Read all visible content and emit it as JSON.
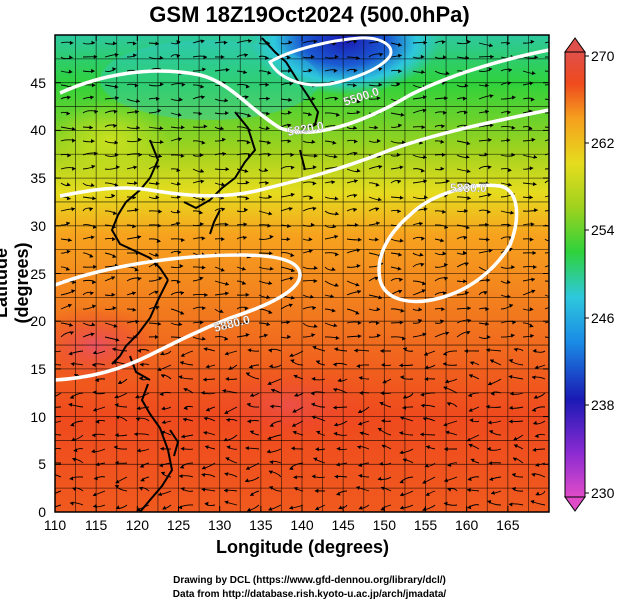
{
  "title": "GSM 18Z19Oct2024 (500.0hPa)",
  "axes": {
    "xlabel": "Longitude (degrees)",
    "ylabel": "Latitude  (degrees)",
    "xticks": [
      "110",
      "115",
      "120",
      "125",
      "130",
      "135",
      "140",
      "145",
      "150",
      "155",
      "160",
      "165"
    ],
    "yticks": [
      "0",
      "5",
      "10",
      "15",
      "20",
      "25",
      "30",
      "35",
      "40",
      "45"
    ]
  },
  "colorbar": {
    "ticks": [
      "270",
      "262",
      "254",
      "246",
      "238",
      "230"
    ],
    "colors": [
      "#e04cc8",
      "#1a1ab4",
      "#1a8ce6",
      "#2ec8dc",
      "#2ed23c",
      "#9ed21e",
      "#e6dc1e",
      "#f7a21e",
      "#f27a1e",
      "#ef3d1e",
      "#e0504a"
    ]
  },
  "contour_labels": {
    "c5880": "5880.0",
    "c5820": "5820.0",
    "c5500": "5500.0",
    "c5880_east": "5880.0"
  },
  "credits": {
    "line1": "Drawing by DCL (https://www.gfd-dennou.org/library/dcl/)",
    "line2": "Data from http://database.rish.kyoto-u.ac.jp/arch/jmadata/"
  },
  "chart_data": {
    "type": "heatmap",
    "title": "GSM 18Z19Oct2024 (500.0hPa)",
    "xlabel": "Longitude (degrees)",
    "ylabel": "Latitude  (degrees)",
    "xlim": [
      110,
      170
    ],
    "ylim": [
      0,
      50
    ],
    "colorbar_range": [
      230,
      270
    ],
    "colorbar_unit": "",
    "contour_values": [
      5880.0,
      5820.0,
      5500.0
    ]
  }
}
